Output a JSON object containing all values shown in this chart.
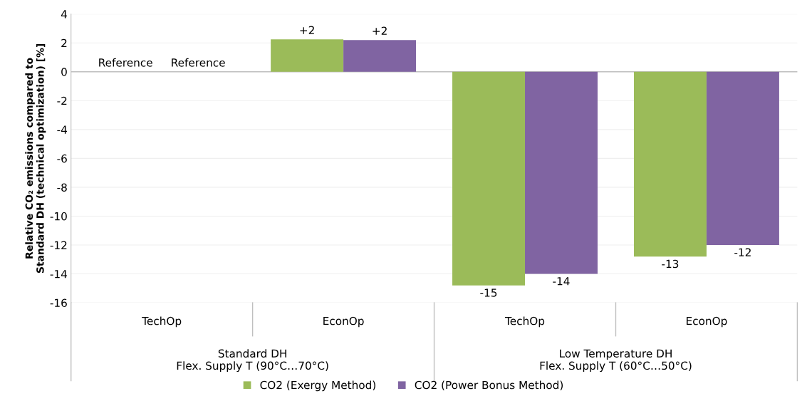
{
  "chart_data": {
    "type": "bar",
    "ylabel": "Relative CO₂ emissions compared to\nStandard DH (technical optimization) [%]",
    "categories": [
      "TechOp",
      "EconOp",
      "TechOp",
      "EconOp"
    ],
    "series": [
      {
        "name": "CO2 (Exergy Method)",
        "color": "#9bbb59",
        "values": [
          null,
          2.25,
          -14.8,
          -12.8
        ],
        "value_labels": [
          null,
          "+2",
          "-15",
          "-13"
        ]
      },
      {
        "name": "CO2 (Power Bonus Method)",
        "color": "#8064a2",
        "values": [
          null,
          2.2,
          -14.0,
          -12.0
        ],
        "value_labels": [
          null,
          "+2",
          "-14",
          "-12"
        ]
      }
    ],
    "annotations": [
      "Reference",
      "Reference",
      "Standard DH\nFlex. Supply T (90°C…70°C)",
      "Low Temperature DH\nFlex. Supply T (60°C…50°C)"
    ],
    "ylim": [
      -16,
      4
    ],
    "yticks": [
      -16,
      -14,
      -12,
      -10,
      -8,
      -6,
      -4,
      -2,
      0,
      2,
      4
    ],
    "grid": "y",
    "legend": "bottom"
  }
}
